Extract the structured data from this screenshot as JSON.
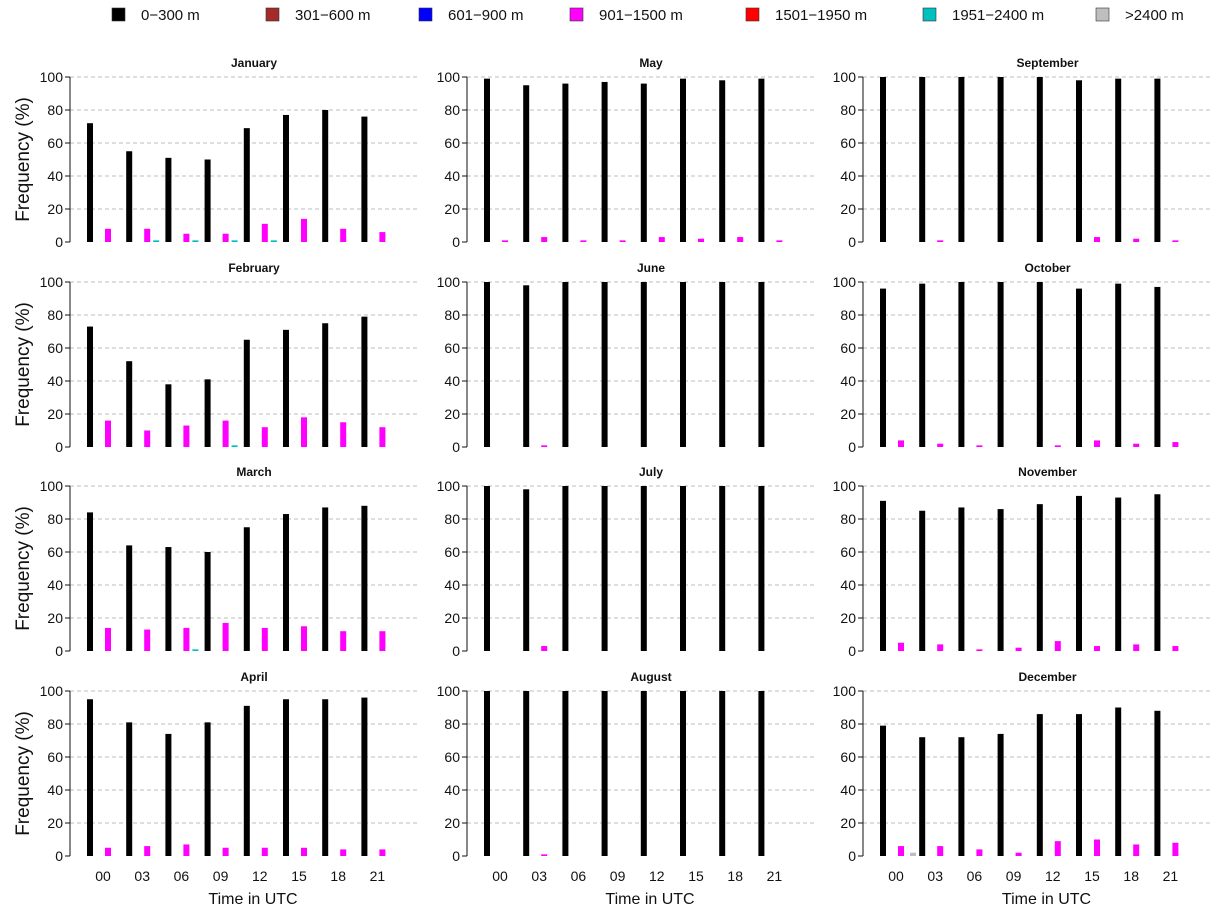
{
  "chart_data": {
    "type": "bar",
    "layout": "facet-grid 4 rows x 3 columns",
    "legend": {
      "placement": "top",
      "entries": [
        {
          "label": "0−300 m",
          "color": "#000000"
        },
        {
          "label": "301−600 m",
          "color": "#a52a2a"
        },
        {
          "label": "601−900 m",
          "color": "#0000ff"
        },
        {
          "label": "901−1500 m",
          "color": "#ff00ff"
        },
        {
          "label": "1501−1950 m",
          "color": "#ff0000"
        },
        {
          "label": "1951−2400 m",
          "color": "#00bfbf"
        },
        {
          "label": ">2400 m",
          "color": "#bebebe"
        }
      ]
    },
    "ylabel": "Frequency (%)",
    "xlabel": "Time in UTC",
    "ylim": [
      0,
      100
    ],
    "yticks": [
      0,
      20,
      40,
      60,
      80,
      100
    ],
    "grid": "horizontal dashed",
    "categories": [
      "00",
      "03",
      "06",
      "09",
      "12",
      "15",
      "18",
      "21"
    ],
    "panels": [
      {
        "title": "January",
        "series": [
          {
            "name": "0−300 m",
            "values": [
              72,
              55,
              51,
              50,
              69,
              77,
              80,
              76
            ]
          },
          {
            "name": "901−1500 m",
            "values": [
              8,
              8,
              5,
              5,
              11,
              14,
              8,
              6
            ]
          },
          {
            "name": "1951−2400 m",
            "values": [
              0,
              1,
              1,
              1,
              1,
              0,
              0,
              0
            ]
          }
        ]
      },
      {
        "title": "May",
        "series": [
          {
            "name": "0−300 m",
            "values": [
              99,
              95,
              96,
              97,
              96,
              99,
              98,
              99
            ]
          },
          {
            "name": "901−1500 m",
            "values": [
              1,
              3,
              1,
              1,
              3,
              2,
              3,
              1
            ]
          }
        ]
      },
      {
        "title": "September",
        "series": [
          {
            "name": "0−300 m",
            "values": [
              100,
              100,
              100,
              100,
              100,
              98,
              99,
              99
            ]
          },
          {
            "name": "901−1500 m",
            "values": [
              0,
              1,
              0,
              0,
              0,
              3,
              2,
              1
            ]
          }
        ]
      },
      {
        "title": "February",
        "series": [
          {
            "name": "0−300 m",
            "values": [
              73,
              52,
              38,
              41,
              65,
              71,
              75,
              79
            ]
          },
          {
            "name": "901−1500 m",
            "values": [
              16,
              10,
              13,
              16,
              12,
              18,
              15,
              12
            ]
          },
          {
            "name": "1951−2400 m",
            "values": [
              0,
              0,
              0,
              1,
              0,
              0,
              0,
              0
            ]
          }
        ]
      },
      {
        "title": "June",
        "series": [
          {
            "name": "0−300 m",
            "values": [
              100,
              98,
              100,
              100,
              100,
              100,
              100,
              100
            ]
          },
          {
            "name": "901−1500 m",
            "values": [
              0,
              1,
              0,
              0,
              0,
              0,
              0,
              0
            ]
          }
        ]
      },
      {
        "title": "October",
        "series": [
          {
            "name": "0−300 m",
            "values": [
              96,
              99,
              100,
              100,
              100,
              96,
              99,
              97
            ]
          },
          {
            "name": "901−1500 m",
            "values": [
              4,
              2,
              1,
              0,
              1,
              4,
              2,
              3
            ]
          }
        ]
      },
      {
        "title": "March",
        "series": [
          {
            "name": "0−300 m",
            "values": [
              84,
              64,
              63,
              60,
              75,
              83,
              87,
              88
            ]
          },
          {
            "name": "901−1500 m",
            "values": [
              14,
              13,
              14,
              17,
              14,
              15,
              12,
              12
            ]
          },
          {
            "name": "1951−2400 m",
            "values": [
              0,
              0,
              1,
              0,
              0,
              0,
              0,
              0
            ]
          }
        ]
      },
      {
        "title": "July",
        "series": [
          {
            "name": "0−300 m",
            "values": [
              100,
              98,
              100,
              100,
              100,
              100,
              100,
              100
            ]
          },
          {
            "name": "901−1500 m",
            "values": [
              0,
              3,
              0,
              0,
              0,
              0,
              0,
              0
            ]
          }
        ]
      },
      {
        "title": "November",
        "series": [
          {
            "name": "0−300 m",
            "values": [
              91,
              85,
              87,
              86,
              89,
              94,
              93,
              95
            ]
          },
          {
            "name": "901−1500 m",
            "values": [
              5,
              4,
              1,
              2,
              6,
              3,
              4,
              3
            ]
          }
        ]
      },
      {
        "title": "April",
        "series": [
          {
            "name": "0−300 m",
            "values": [
              95,
              81,
              74,
              81,
              91,
              95,
              95,
              96
            ]
          },
          {
            "name": "901−1500 m",
            "values": [
              5,
              6,
              7,
              5,
              5,
              5,
              4,
              4
            ]
          }
        ]
      },
      {
        "title": "August",
        "series": [
          {
            "name": "0−300 m",
            "values": [
              100,
              100,
              100,
              100,
              100,
              100,
              100,
              100
            ]
          },
          {
            "name": "901−1500 m",
            "values": [
              0,
              1,
              0,
              0,
              0,
              0,
              0,
              0
            ]
          }
        ]
      },
      {
        "title": "December",
        "series": [
          {
            "name": "0−300 m",
            "values": [
              79,
              72,
              72,
              74,
              86,
              86,
              90,
              88
            ]
          },
          {
            "name": "901−1500 m",
            "values": [
              6,
              6,
              4,
              2,
              9,
              10,
              7,
              8
            ]
          },
          {
            "name": ">2400 m",
            "values": [
              2,
              0,
              0,
              0,
              0,
              0,
              0,
              0
            ]
          }
        ]
      }
    ]
  }
}
